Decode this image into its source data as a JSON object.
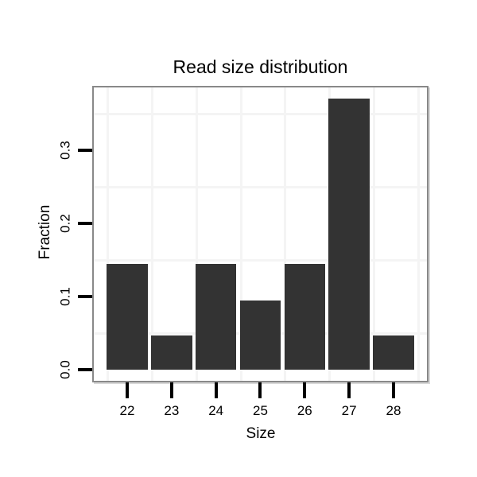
{
  "chart_data": {
    "type": "bar",
    "title": "Read size distribution",
    "xlabel": "Size",
    "ylabel": "Fraction",
    "categories": [
      "22",
      "23",
      "24",
      "25",
      "26",
      "27",
      "28"
    ],
    "values": [
      0.145,
      0.047,
      0.145,
      0.095,
      0.145,
      0.371,
      0.047
    ],
    "y_ticks": [
      0.0,
      0.1,
      0.2,
      0.3
    ],
    "y_tick_labels": [
      "0.0",
      "0.1",
      "0.2",
      "0.3"
    ],
    "ylim": [
      -0.017,
      0.386
    ],
    "grid": "minor-gridlines-only",
    "y_minor_gridlines": [
      0.05,
      0.15,
      0.25,
      0.35
    ],
    "x_minor_gridlines": [
      21.5,
      22.5,
      23.5,
      24.5,
      25.5,
      26.5,
      27.5,
      28.5
    ],
    "legend": "none",
    "colors": {
      "bar_fill": "#333333",
      "panel_border": "#898989",
      "gridline": "#f4f4f4",
      "tick": "#000000",
      "text": "#000000",
      "background": "#ffffff"
    }
  }
}
